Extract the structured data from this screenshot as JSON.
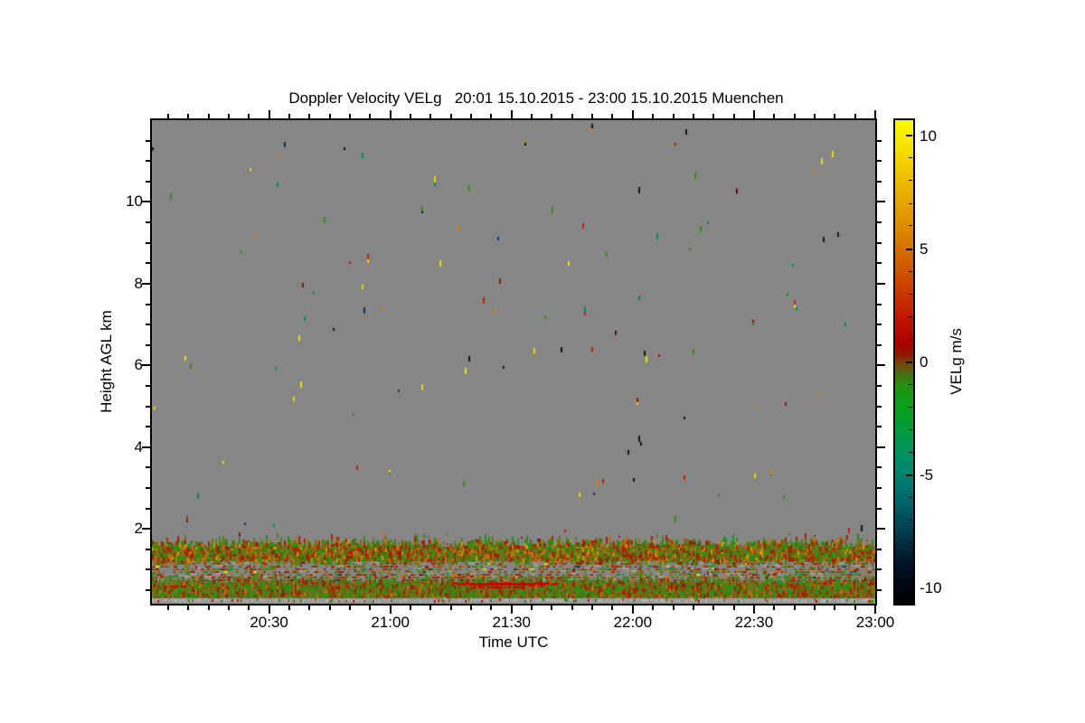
{
  "title": "Doppler Velocity VELg   20:01 15.10.2015 - 23:00 15.10.2015 Muenchen",
  "chart_data": {
    "type": "heatmap",
    "title": "Doppler Velocity VELg   20:01 15.10.2015 - 23:00 15.10.2015 Muenchen",
    "site": "Muenchen",
    "date": "15.10.2015",
    "xlabel": "Time UTC",
    "ylabel": "Height AGL km",
    "x_start": "20:01",
    "x_end": "23:00",
    "x_ticks": [
      "20:30",
      "21:00",
      "21:30",
      "22:00",
      "22:30",
      "23:00"
    ],
    "x_minor_interval_min": 5,
    "x_major_interval_min": 30,
    "y_range_km": [
      0.17,
      12.0
    ],
    "y_ticks": [
      2,
      4,
      6,
      8,
      10
    ],
    "y_minor_interval_km": 0.5,
    "grid": false,
    "no_data_color": "#868686",
    "colorbar": {
      "label": "VELg m/s",
      "ticks": [
        -10,
        -5,
        0,
        5,
        10
      ],
      "minor_interval": 1,
      "range": [
        -10.7,
        10.7
      ],
      "stops": [
        [
          0,
          "#fdfa00"
        ],
        [
          3,
          "#f8ee00"
        ],
        [
          8,
          "#f3d400"
        ],
        [
          13,
          "#ecb800"
        ],
        [
          18,
          "#e4a000"
        ],
        [
          23,
          "#dc8600"
        ],
        [
          27,
          "#d56e00"
        ],
        [
          31,
          "#cf5600"
        ],
        [
          35,
          "#c93c00"
        ],
        [
          39,
          "#c32400"
        ],
        [
          42,
          "#bc1000"
        ],
        [
          45,
          "#b00400"
        ],
        [
          47,
          "#a00600"
        ],
        [
          48.5,
          "#8d1a05"
        ],
        [
          50,
          "#784009"
        ],
        [
          51.5,
          "#60590e"
        ],
        [
          53,
          "#417711"
        ],
        [
          55,
          "#259013"
        ],
        [
          58,
          "#0f9c17"
        ],
        [
          61,
          "#059e26"
        ],
        [
          64,
          "#009c3c"
        ],
        [
          67,
          "#009752"
        ],
        [
          70,
          "#009064"
        ],
        [
          73,
          "#00846c"
        ],
        [
          76,
          "#00756e"
        ],
        [
          79,
          "#006369"
        ],
        [
          82,
          "#00505e"
        ],
        [
          85,
          "#013c50"
        ],
        [
          88,
          "#02293e"
        ],
        [
          91,
          "#03182c"
        ],
        [
          94,
          "#020c1c"
        ],
        [
          97,
          "#01050e"
        ],
        [
          100,
          "#000004"
        ]
      ]
    },
    "features": [
      {
        "name": "upper-band",
        "kind": "dense-noise",
        "height_km": [
          1.2,
          1.6
        ],
        "description": "continuous noisy velocity band, olive/green/red/orange mix, ragged grassy top edge, spans full time range"
      },
      {
        "name": "gap-band",
        "kind": "sparse-noise",
        "height_km": [
          0.75,
          1.2
        ],
        "description": "mostly no-data gray with ~40% scattered short colored dashes"
      },
      {
        "name": "lower-band",
        "kind": "dense-noise",
        "height_km": [
          0.3,
          0.75
        ],
        "description": "continuous noisy velocity band, olive/green dominated with red flecks, spans full time range"
      },
      {
        "name": "surface-strip",
        "kind": "light-strip",
        "height_km": [
          0.2,
          0.3
        ],
        "description": "light gray strip with faint pinkish dashes just above the bottom axis"
      },
      {
        "name": "red-streak",
        "kind": "streak",
        "height_km": 0.68,
        "time": [
          "21:15",
          "21:41"
        ],
        "approx_velocity_ms": 2,
        "description": "bright red horizontal streak of positive velocity"
      },
      {
        "name": "red-streak-2",
        "kind": "streak",
        "height_km": 0.58,
        "time": [
          "21:20",
          "21:33"
        ],
        "approx_velocity_ms": 1.5,
        "description": "shorter secondary red dash row"
      },
      {
        "name": "aloft-speckles",
        "kind": "speckles",
        "height_km": [
          1.7,
          11.95
        ],
        "description": "sparse isolated 2px-wide velocity dashes (yellow, orange, red, green, teal, navy, black) scattered over the gray no-data region"
      }
    ],
    "noise_model": {
      "seed": 42,
      "background": "#868686",
      "upper_speckle_count": 110,
      "low_extra_speckle_count": 38,
      "palettes": {
        "speckles": [
          [
            "#d97e00",
            0.17
          ],
          [
            "#c22000",
            0.14
          ],
          [
            "#e8dc00",
            0.14
          ],
          [
            "#2f9012",
            0.16
          ],
          [
            "#008a66",
            0.08
          ],
          [
            "#16365c",
            0.08
          ],
          [
            "#141414",
            0.14
          ],
          [
            "#8c1604",
            0.09
          ]
        ],
        "bandA": [
          [
            "#7b6e1a",
            0.24
          ],
          [
            "#5f6414",
            0.1
          ],
          [
            "#2f8d12",
            0.18
          ],
          [
            "#119a16",
            0.06
          ],
          [
            "#b51c00",
            0.13
          ],
          [
            "#8f2004",
            0.06
          ],
          [
            "#c86c0a",
            0.12
          ],
          [
            "#8a4c0a",
            0.07
          ],
          [
            "#d89400",
            0.04
          ]
        ],
        "bandB": [
          [
            "#7b6e1a",
            0.28
          ],
          [
            "#5f6414",
            0.14
          ],
          [
            "#2f8d12",
            0.22
          ],
          [
            "#119a16",
            0.06
          ],
          [
            "#b51c00",
            0.1
          ],
          [
            "#8f2004",
            0.06
          ],
          [
            "#c86c0a",
            0.05
          ],
          [
            "#8a4c0a",
            0.08
          ],
          [
            "#417711",
            0.01
          ]
        ],
        "gap": [
          [
            "#7b6e1a",
            0.28
          ],
          [
            "#8f2004",
            0.12
          ],
          [
            "#b51c00",
            0.12
          ],
          [
            "#2f8d12",
            0.2
          ],
          [
            "#8a4c0a",
            0.1
          ],
          [
            "#c86c0a",
            0.06
          ],
          [
            "#5f6414",
            0.06
          ],
          [
            "#008a66",
            0.02
          ],
          [
            "#16365c",
            0.02
          ],
          [
            "#141414",
            0.01
          ],
          [
            "#e8dc00",
            0.01
          ]
        ],
        "grass": [
          [
            "#2f8d12",
            0.45
          ],
          [
            "#119a16",
            0.15
          ],
          [
            "#b51c00",
            0.2
          ],
          [
            "#c86c0a",
            0.12
          ],
          [
            "#7b6e1a",
            0.08
          ]
        ],
        "surface": [
          [
            "#b2b2b2",
            0.45
          ],
          [
            "#c4a4a4",
            0.15
          ],
          [
            "#b09898",
            0.1
          ],
          [
            "#b51c00",
            0.08
          ],
          [
            "#7b6e1a",
            0.12
          ],
          [
            "#2f8d12",
            0.1
          ]
        ]
      },
      "gap_density": 0.42,
      "gap_bottom_density": 0.55,
      "streak_color": "#d40000",
      "surface_base": "#9c9c9c"
    }
  }
}
